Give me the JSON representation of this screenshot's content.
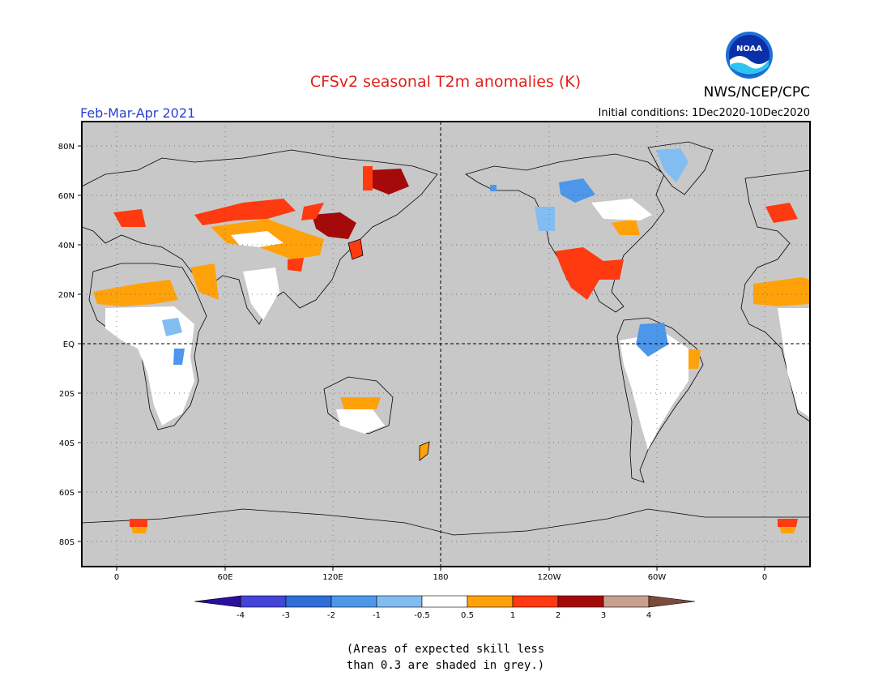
{
  "header": {
    "title": "CFSv2 seasonal T2m anomalies (K)",
    "title_color": "#e0201a",
    "agency": "NWS/NCEP/CPC",
    "period": "Feb-Mar-Apr 2021",
    "period_color": "#2a3fd0",
    "initial_conditions": "Initial conditions: 1Dec2020-10Dec2020",
    "logo_text": "NOAA"
  },
  "map": {
    "projection": "equirectangular",
    "ocean_color": "#c8c8c8",
    "lat_labels": [
      "80N",
      "60N",
      "40N",
      "20N",
      "EQ",
      "20S",
      "40S",
      "60S",
      "80S"
    ],
    "lon_labels": [
      "0",
      "60E",
      "120E",
      "180",
      "120W",
      "60W",
      "0"
    ],
    "grid": "dotted",
    "reference_lines": [
      "EQ",
      "180"
    ]
  },
  "colorbar": {
    "labels": [
      "-4",
      "-3",
      "-2",
      "-1",
      "-0.5",
      "0.5",
      "1",
      "2",
      "3",
      "4"
    ],
    "colors": [
      "#2a0ea0",
      "#4444d8",
      "#2e6ed6",
      "#4d97ea",
      "#82bdf2",
      "#ffffff",
      "#ffa20a",
      "#ff3a10",
      "#a50a0a",
      "#c8a090",
      "#7b4a3a"
    ]
  },
  "note": {
    "line1": "(Areas of expected skill less",
    "line2": "than 0.3 are shaded in grey.)"
  }
}
